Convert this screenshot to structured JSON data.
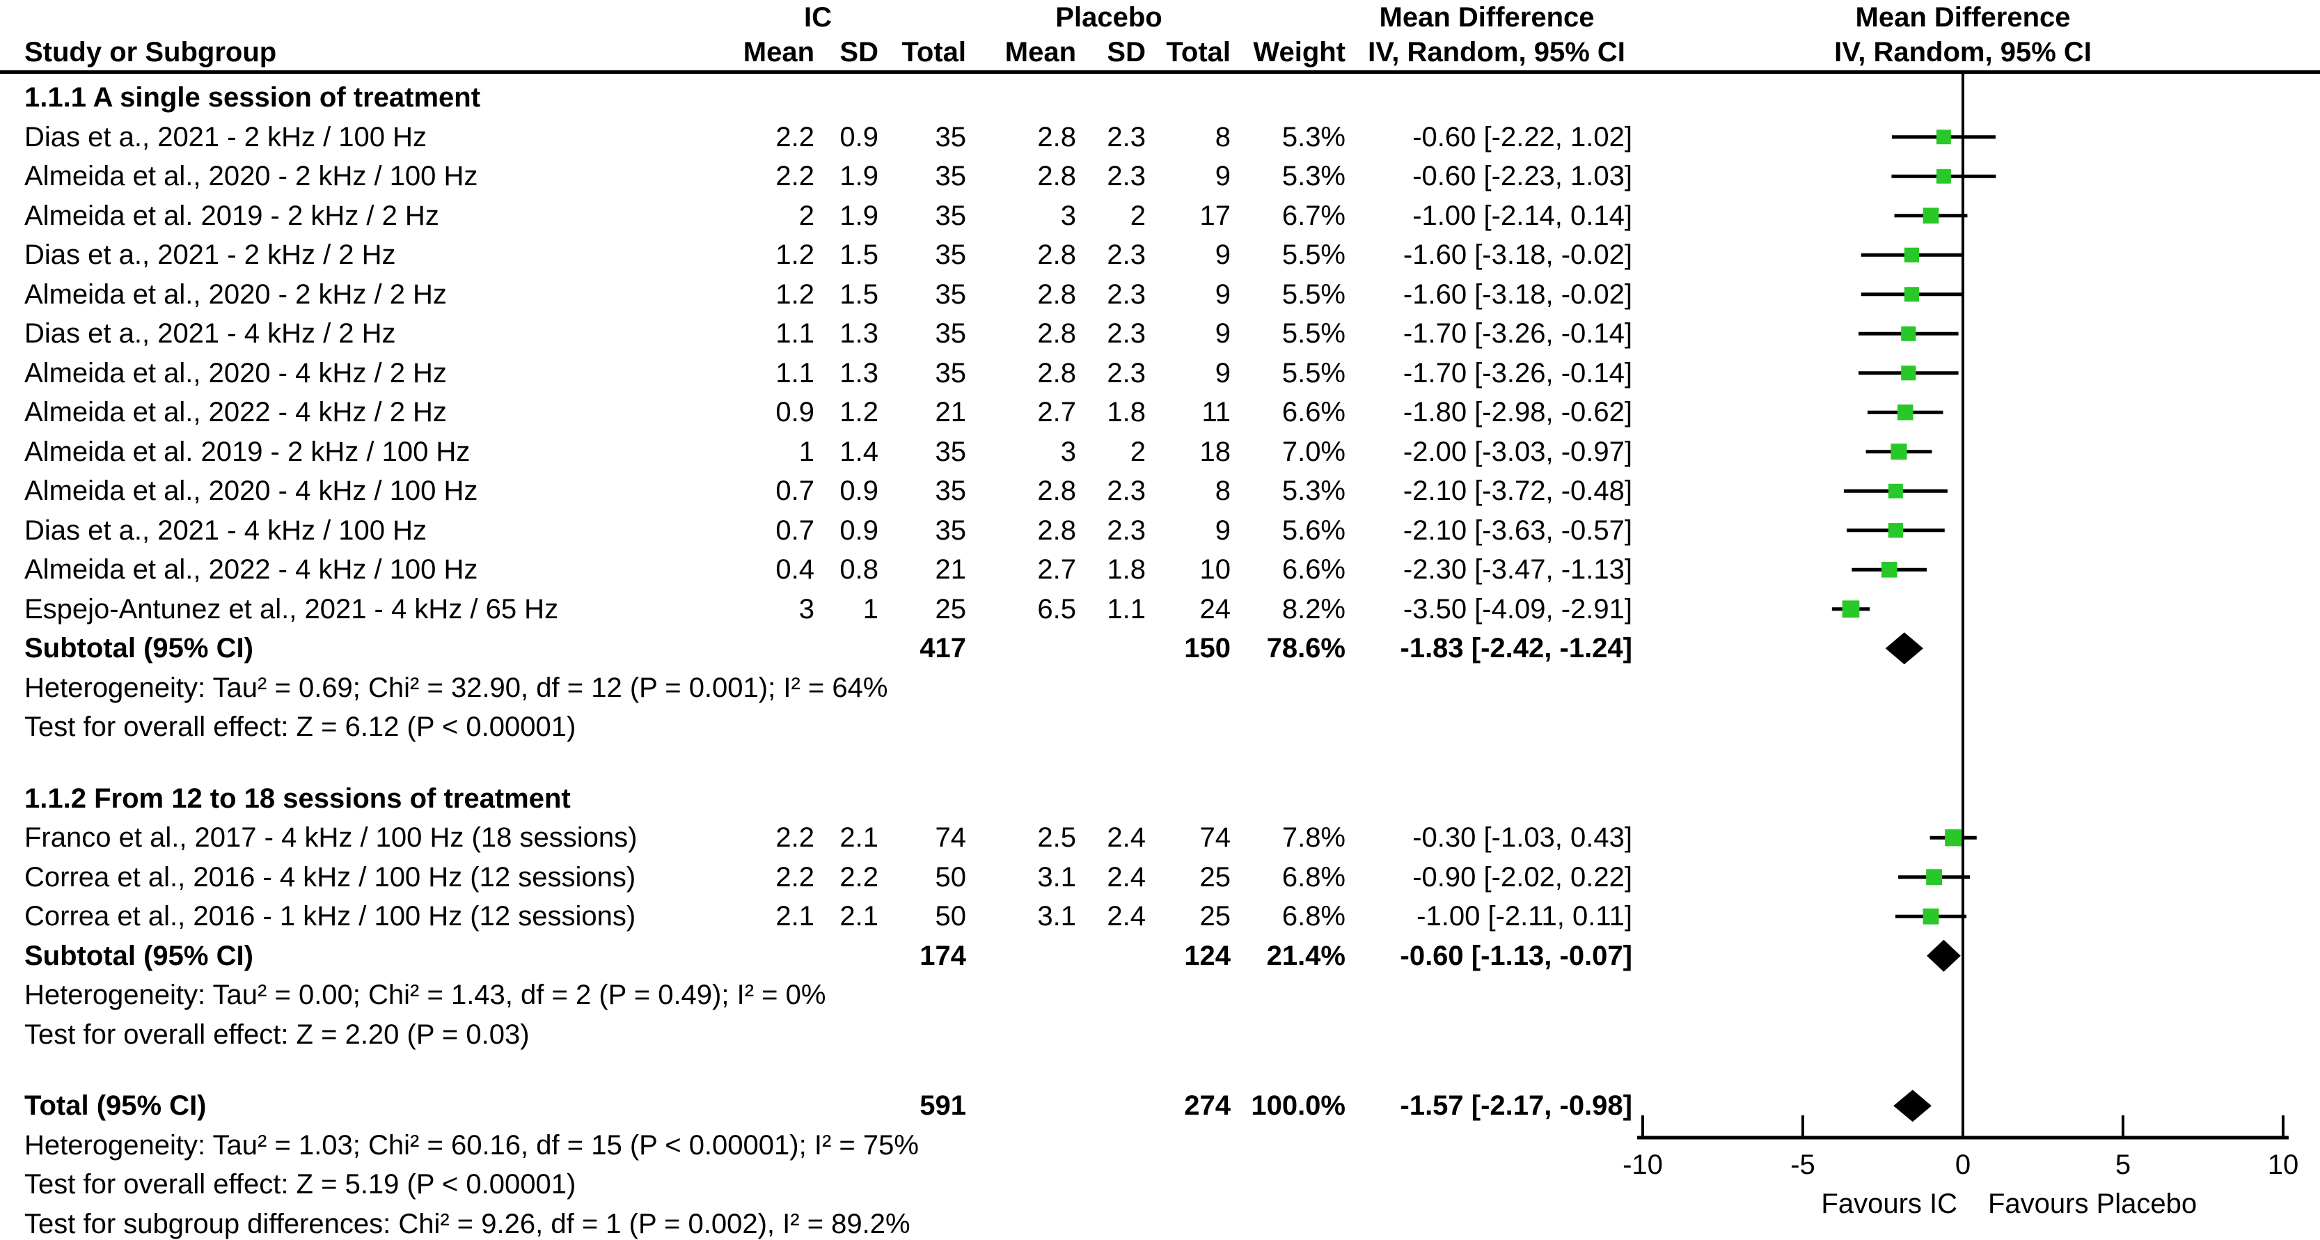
{
  "header": {
    "study_col": "Study or Subgroup",
    "group1": {
      "name": "IC",
      "cols": [
        "Mean",
        "SD",
        "Total"
      ]
    },
    "group2": {
      "name": "Placebo",
      "cols": [
        "Mean",
        "SD",
        "Total"
      ]
    },
    "weight_col": "Weight",
    "effect_col_line1": "Mean Difference",
    "effect_col_line2": "IV, Random, 95% CI",
    "plot_col_line1": "Mean Difference",
    "plot_col_line2": "IV, Random, 95% CI"
  },
  "colors": {
    "marker_green": "#28C828",
    "diamond_black": "#000000",
    "line_black": "#000000",
    "text": "#000000",
    "background": "#FFFFFF"
  },
  "chart_data": {
    "type": "forest_plot",
    "effect_label": "Mean Difference",
    "model": "IV, Random, 95% CI",
    "axis": {
      "min": -10,
      "max": 10,
      "ticks": [
        -10,
        -5,
        0,
        5,
        10
      ],
      "favours_left": "Favours IC",
      "favours_right": "Favours Placebo"
    },
    "sections": [
      {
        "title": "1.1.1 A single session of treatment",
        "studies": [
          {
            "label": "Dias et a., 2021 - 2 kHz / 100 Hz",
            "ic_mean": "2.2",
            "ic_sd": "0.9",
            "ic_total": "35",
            "p_mean": "2.8",
            "p_sd": "2.3",
            "p_total": "8",
            "weight": "5.3%",
            "md": -0.6,
            "lo": -2.22,
            "hi": 1.02,
            "ci_text": "-0.60 [-2.22, 1.02]"
          },
          {
            "label": "Almeida et al., 2020 - 2 kHz / 100 Hz",
            "ic_mean": "2.2",
            "ic_sd": "1.9",
            "ic_total": "35",
            "p_mean": "2.8",
            "p_sd": "2.3",
            "p_total": "9",
            "weight": "5.3%",
            "md": -0.6,
            "lo": -2.23,
            "hi": 1.03,
            "ci_text": "-0.60 [-2.23, 1.03]"
          },
          {
            "label": "Almeida et al. 2019 - 2 kHz / 2 Hz",
            "ic_mean": "2",
            "ic_sd": "1.9",
            "ic_total": "35",
            "p_mean": "3",
            "p_sd": "2",
            "p_total": "17",
            "weight": "6.7%",
            "md": -1.0,
            "lo": -2.14,
            "hi": 0.14,
            "ci_text": "-1.00 [-2.14, 0.14]"
          },
          {
            "label": "Dias et a., 2021 - 2 kHz / 2 Hz",
            "ic_mean": "1.2",
            "ic_sd": "1.5",
            "ic_total": "35",
            "p_mean": "2.8",
            "p_sd": "2.3",
            "p_total": "9",
            "weight": "5.5%",
            "md": -1.6,
            "lo": -3.18,
            "hi": -0.02,
            "ci_text": "-1.60 [-3.18, -0.02]"
          },
          {
            "label": "Almeida et al., 2020 - 2 kHz / 2 Hz",
            "ic_mean": "1.2",
            "ic_sd": "1.5",
            "ic_total": "35",
            "p_mean": "2.8",
            "p_sd": "2.3",
            "p_total": "9",
            "weight": "5.5%",
            "md": -1.6,
            "lo": -3.18,
            "hi": -0.02,
            "ci_text": "-1.60 [-3.18, -0.02]"
          },
          {
            "label": "Dias et a., 2021 - 4 kHz / 2 Hz",
            "ic_mean": "1.1",
            "ic_sd": "1.3",
            "ic_total": "35",
            "p_mean": "2.8",
            "p_sd": "2.3",
            "p_total": "9",
            "weight": "5.5%",
            "md": -1.7,
            "lo": -3.26,
            "hi": -0.14,
            "ci_text": "-1.70 [-3.26, -0.14]"
          },
          {
            "label": "Almeida et al., 2020 - 4 kHz / 2 Hz",
            "ic_mean": "1.1",
            "ic_sd": "1.3",
            "ic_total": "35",
            "p_mean": "2.8",
            "p_sd": "2.3",
            "p_total": "9",
            "weight": "5.5%",
            "md": -1.7,
            "lo": -3.26,
            "hi": -0.14,
            "ci_text": "-1.70 [-3.26, -0.14]"
          },
          {
            "label": "Almeida et al., 2022 - 4 kHz / 2 Hz",
            "ic_mean": "0.9",
            "ic_sd": "1.2",
            "ic_total": "21",
            "p_mean": "2.7",
            "p_sd": "1.8",
            "p_total": "11",
            "weight": "6.6%",
            "md": -1.8,
            "lo": -2.98,
            "hi": -0.62,
            "ci_text": "-1.80 [-2.98, -0.62]"
          },
          {
            "label": "Almeida et al. 2019 - 2 kHz / 100 Hz",
            "ic_mean": "1",
            "ic_sd": "1.4",
            "ic_total": "35",
            "p_mean": "3",
            "p_sd": "2",
            "p_total": "18",
            "weight": "7.0%",
            "md": -2.0,
            "lo": -3.03,
            "hi": -0.97,
            "ci_text": "-2.00 [-3.03, -0.97]"
          },
          {
            "label": "Almeida et al., 2020 - 4 kHz / 100 Hz",
            "ic_mean": "0.7",
            "ic_sd": "0.9",
            "ic_total": "35",
            "p_mean": "2.8",
            "p_sd": "2.3",
            "p_total": "8",
            "weight": "5.3%",
            "md": -2.1,
            "lo": -3.72,
            "hi": -0.48,
            "ci_text": "-2.10 [-3.72, -0.48]"
          },
          {
            "label": "Dias et a., 2021 - 4 kHz / 100 Hz",
            "ic_mean": "0.7",
            "ic_sd": "0.9",
            "ic_total": "35",
            "p_mean": "2.8",
            "p_sd": "2.3",
            "p_total": "9",
            "weight": "5.6%",
            "md": -2.1,
            "lo": -3.63,
            "hi": -0.57,
            "ci_text": "-2.10 [-3.63, -0.57]"
          },
          {
            "label": "Almeida et al., 2022 - 4 kHz / 100 Hz",
            "ic_mean": "0.4",
            "ic_sd": "0.8",
            "ic_total": "21",
            "p_mean": "2.7",
            "p_sd": "1.8",
            "p_total": "10",
            "weight": "6.6%",
            "md": -2.3,
            "lo": -3.47,
            "hi": -1.13,
            "ci_text": "-2.30 [-3.47, -1.13]"
          },
          {
            "label": "Espejo-Antunez et al., 2021 - 4 kHz / 65 Hz",
            "ic_mean": "3",
            "ic_sd": "1",
            "ic_total": "25",
            "p_mean": "6.5",
            "p_sd": "1.1",
            "p_total": "24",
            "weight": "8.2%",
            "md": -3.5,
            "lo": -4.09,
            "hi": -2.91,
            "ci_text": "-3.50 [-4.09, -2.91]"
          }
        ],
        "subtotal": {
          "label": "Subtotal (95% CI)",
          "ic_total": "417",
          "p_total": "150",
          "weight": "78.6%",
          "md": -1.83,
          "lo": -2.42,
          "hi": -1.24,
          "ci_text": "-1.83 [-2.42, -1.24]"
        },
        "heterogeneity": "Heterogeneity: Tau² = 0.69; Chi² = 32.90, df = 12 (P = 0.001); I² = 64%",
        "overall_effect": "Test for overall effect: Z = 6.12 (P < 0.00001)"
      },
      {
        "title": "1.1.2 From 12 to 18 sessions of treatment",
        "studies": [
          {
            "label": "Franco et al., 2017 - 4 kHz / 100 Hz (18 sessions)",
            "ic_mean": "2.2",
            "ic_sd": "2.1",
            "ic_total": "74",
            "p_mean": "2.5",
            "p_sd": "2.4",
            "p_total": "74",
            "weight": "7.8%",
            "md": -0.3,
            "lo": -1.03,
            "hi": 0.43,
            "ci_text": "-0.30 [-1.03, 0.43]"
          },
          {
            "label": "Correa et al., 2016 - 4 kHz / 100 Hz (12 sessions)",
            "ic_mean": "2.2",
            "ic_sd": "2.2",
            "ic_total": "50",
            "p_mean": "3.1",
            "p_sd": "2.4",
            "p_total": "25",
            "weight": "6.8%",
            "md": -0.9,
            "lo": -2.02,
            "hi": 0.22,
            "ci_text": "-0.90 [-2.02, 0.22]"
          },
          {
            "label": "Correa et al., 2016 - 1 kHz / 100 Hz (12 sessions)",
            "ic_mean": "2.1",
            "ic_sd": "2.1",
            "ic_total": "50",
            "p_mean": "3.1",
            "p_sd": "2.4",
            "p_total": "25",
            "weight": "6.8%",
            "md": -1.0,
            "lo": -2.11,
            "hi": 0.11,
            "ci_text": "-1.00 [-2.11, 0.11]"
          }
        ],
        "subtotal": {
          "label": "Subtotal (95% CI)",
          "ic_total": "174",
          "p_total": "124",
          "weight": "21.4%",
          "md": -0.6,
          "lo": -1.13,
          "hi": -0.07,
          "ci_text": "-0.60 [-1.13, -0.07]"
        },
        "heterogeneity": "Heterogeneity: Tau² = 0.00; Chi² = 1.43, df = 2 (P = 0.49); I² = 0%",
        "overall_effect": "Test for overall effect: Z = 2.20 (P = 0.03)"
      }
    ],
    "total": {
      "label": "Total (95% CI)",
      "ic_total": "591",
      "p_total": "274",
      "weight": "100.0%",
      "md": -1.57,
      "lo": -2.17,
      "hi": -0.98,
      "ci_text": "-1.57 [-2.17, -0.98]"
    },
    "total_heterogeneity": "Heterogeneity: Tau² = 1.03; Chi² = 60.16, df = 15 (P < 0.00001); I² = 75%",
    "total_overall_effect": "Test for overall effect: Z = 5.19 (P < 0.00001)",
    "subgroup_differences": "Test for subgroup differences: Chi² = 9.26, df = 1 (P = 0.002), I² = 89.2%"
  }
}
